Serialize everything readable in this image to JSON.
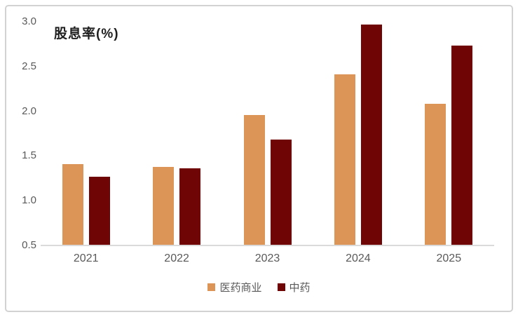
{
  "chart_data": {
    "type": "bar",
    "title": "股息率(%)",
    "categories": [
      "2021",
      "2022",
      "2023",
      "2024",
      "2025"
    ],
    "series": [
      {
        "name": "医药商业",
        "color": "#DC9457",
        "values": [
          1.41,
          1.38,
          1.96,
          2.41,
          2.08
        ]
      },
      {
        "name": "中药",
        "color": "#700505",
        "values": [
          1.27,
          1.36,
          1.68,
          2.97,
          2.73
        ]
      }
    ],
    "ylim": [
      0.5,
      3.0
    ],
    "ytick_labels": [
      "0.5",
      "1.0",
      "1.5",
      "2.0",
      "2.5",
      "3.0"
    ],
    "grid": "off",
    "legend_position": "bottom",
    "colors": {
      "axis_line": "#DADADA",
      "tick_text": "#595959",
      "title_text": "#1F1F1F",
      "frame_border": "#D2D2D2",
      "background": "#FFFFFF"
    }
  }
}
